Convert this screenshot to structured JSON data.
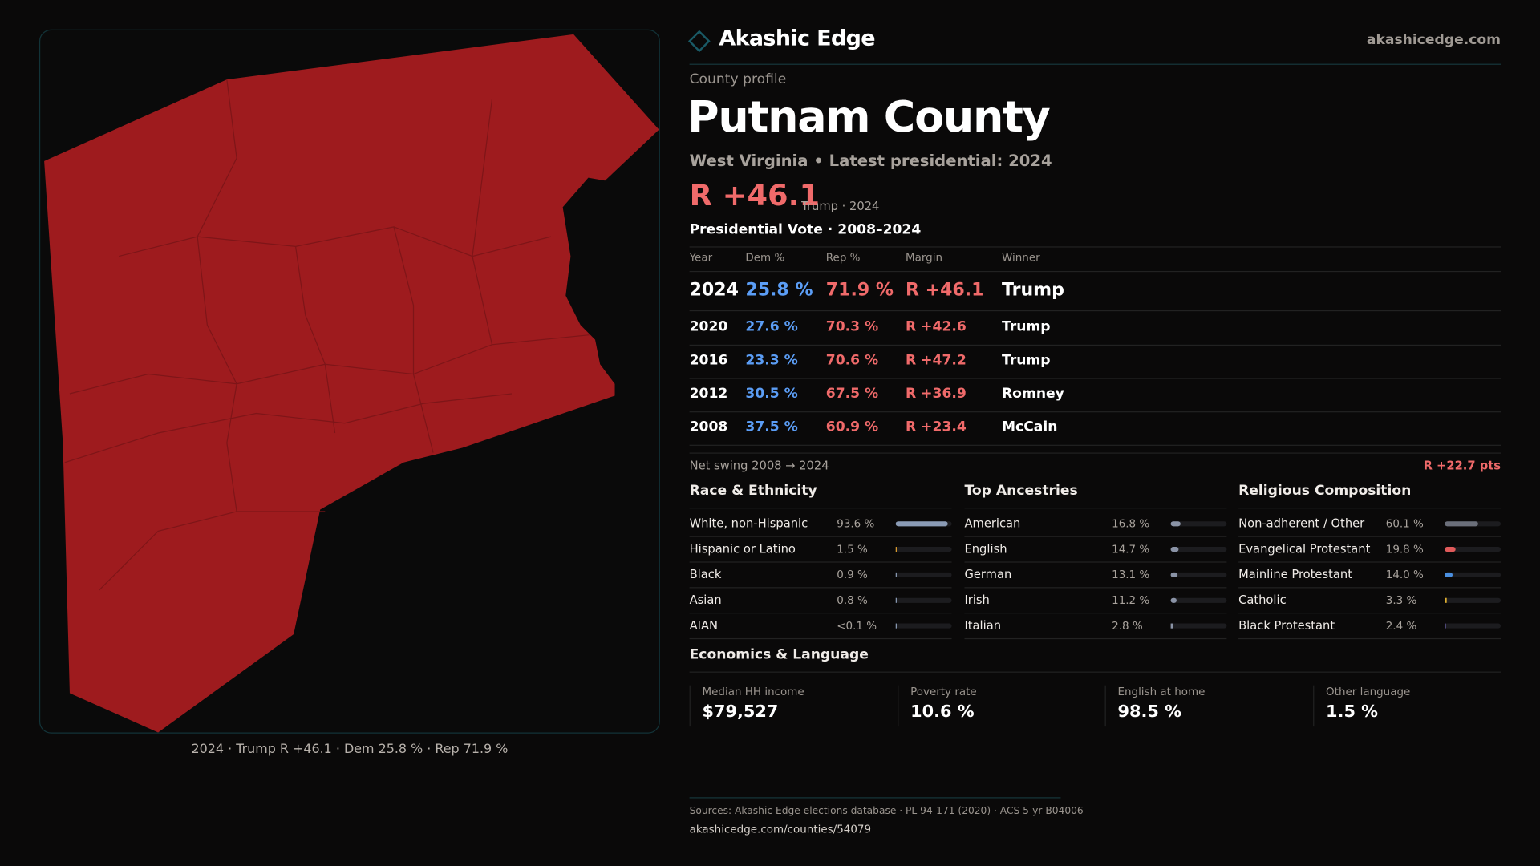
{
  "header": {
    "brand": "Akashic Edge",
    "site": "akashicedge.com"
  },
  "profile": {
    "kicker": "County profile",
    "title": "Putnam County",
    "subtitle": "West Virginia • Latest presidential: 2024",
    "margin": "R +46.1",
    "margin_note": "Trump · 2024"
  },
  "map": {
    "fill": "#9e1b1e",
    "caption": "2024 · Trump R +46.1 · Dem 25.8 % · Rep 71.9 %"
  },
  "votes": {
    "title": "Presidential Vote · 2008–2024",
    "headers": [
      "Year",
      "Dem %",
      "Rep %",
      "Margin",
      "Winner"
    ],
    "rows": [
      {
        "year": "2024",
        "dem": "25.8 %",
        "rep": "71.9 %",
        "margin": "R +46.1",
        "winner": "Trump"
      },
      {
        "year": "2020",
        "dem": "27.6 %",
        "rep": "70.3 %",
        "margin": "R +42.6",
        "winner": "Trump"
      },
      {
        "year": "2016",
        "dem": "23.3 %",
        "rep": "70.6 %",
        "margin": "R +47.2",
        "winner": "Trump"
      },
      {
        "year": "2012",
        "dem": "30.5 %",
        "rep": "67.5 %",
        "margin": "R +36.9",
        "winner": "Romney"
      },
      {
        "year": "2008",
        "dem": "37.5 %",
        "rep": "60.9 %",
        "margin": "R +23.4",
        "winner": "McCain"
      }
    ],
    "swing_label": "Net swing 2008 → 2024",
    "swing_value": "R +22.7 pts"
  },
  "sections": [
    {
      "title": "Race & Ethnicity",
      "items": [
        {
          "label": "White, non-Hispanic",
          "value": "93.6 %",
          "pct": 93.6,
          "color": "#8a9bb5"
        },
        {
          "label": "Hispanic or Latino",
          "value": "1.5 %",
          "pct": 1.5,
          "color": "#e0a030"
        },
        {
          "label": "Black",
          "value": "0.9 %",
          "pct": 0.9,
          "color": "#8a9bb5"
        },
        {
          "label": "Asian",
          "value": "0.8 %",
          "pct": 0.8,
          "color": "#8a9bb5"
        },
        {
          "label": "AIAN",
          "value": "<0.1 %",
          "pct": 0.05,
          "color": "#8a9bb5"
        }
      ]
    },
    {
      "title": "Top Ancestries",
      "items": [
        {
          "label": "American",
          "value": "16.8 %",
          "pct": 16.8,
          "color": "#8a93a6"
        },
        {
          "label": "English",
          "value": "14.7 %",
          "pct": 14.7,
          "color": "#8a93a6"
        },
        {
          "label": "German",
          "value": "13.1 %",
          "pct": 13.1,
          "color": "#8a93a6"
        },
        {
          "label": "Irish",
          "value": "11.2 %",
          "pct": 11.2,
          "color": "#8a93a6"
        },
        {
          "label": "Italian",
          "value": "2.8 %",
          "pct": 2.8,
          "color": "#8a93a6"
        }
      ]
    },
    {
      "title": "Religious Composition",
      "items": [
        {
          "label": "Non-adherent / Other",
          "value": "60.1 %",
          "pct": 60.1,
          "color": "#6b6f7a"
        },
        {
          "label": "Evangelical Protestant",
          "value": "19.8 %",
          "pct": 19.8,
          "color": "#e05a5a"
        },
        {
          "label": "Mainline Protestant",
          "value": "14.0 %",
          "pct": 14.0,
          "color": "#4a8fe0"
        },
        {
          "label": "Catholic",
          "value": "3.3 %",
          "pct": 3.3,
          "color": "#e0b030"
        },
        {
          "label": "Black Protestant",
          "value": "2.4 %",
          "pct": 2.4,
          "color": "#8a7be0"
        }
      ]
    }
  ],
  "economics": {
    "title": "Economics & Language",
    "cards": [
      {
        "label": "Median HH income",
        "value": "$79,527"
      },
      {
        "label": "Poverty rate",
        "value": "10.6 %"
      },
      {
        "label": "English at home",
        "value": "98.5 %"
      },
      {
        "label": "Other language",
        "value": "1.5 %"
      }
    ]
  },
  "footer": {
    "sources": "Sources: Akashic Edge elections database · PL 94-171 (2020) · ACS 5-yr B04006",
    "url": "akashicedge.com/counties/54079"
  }
}
